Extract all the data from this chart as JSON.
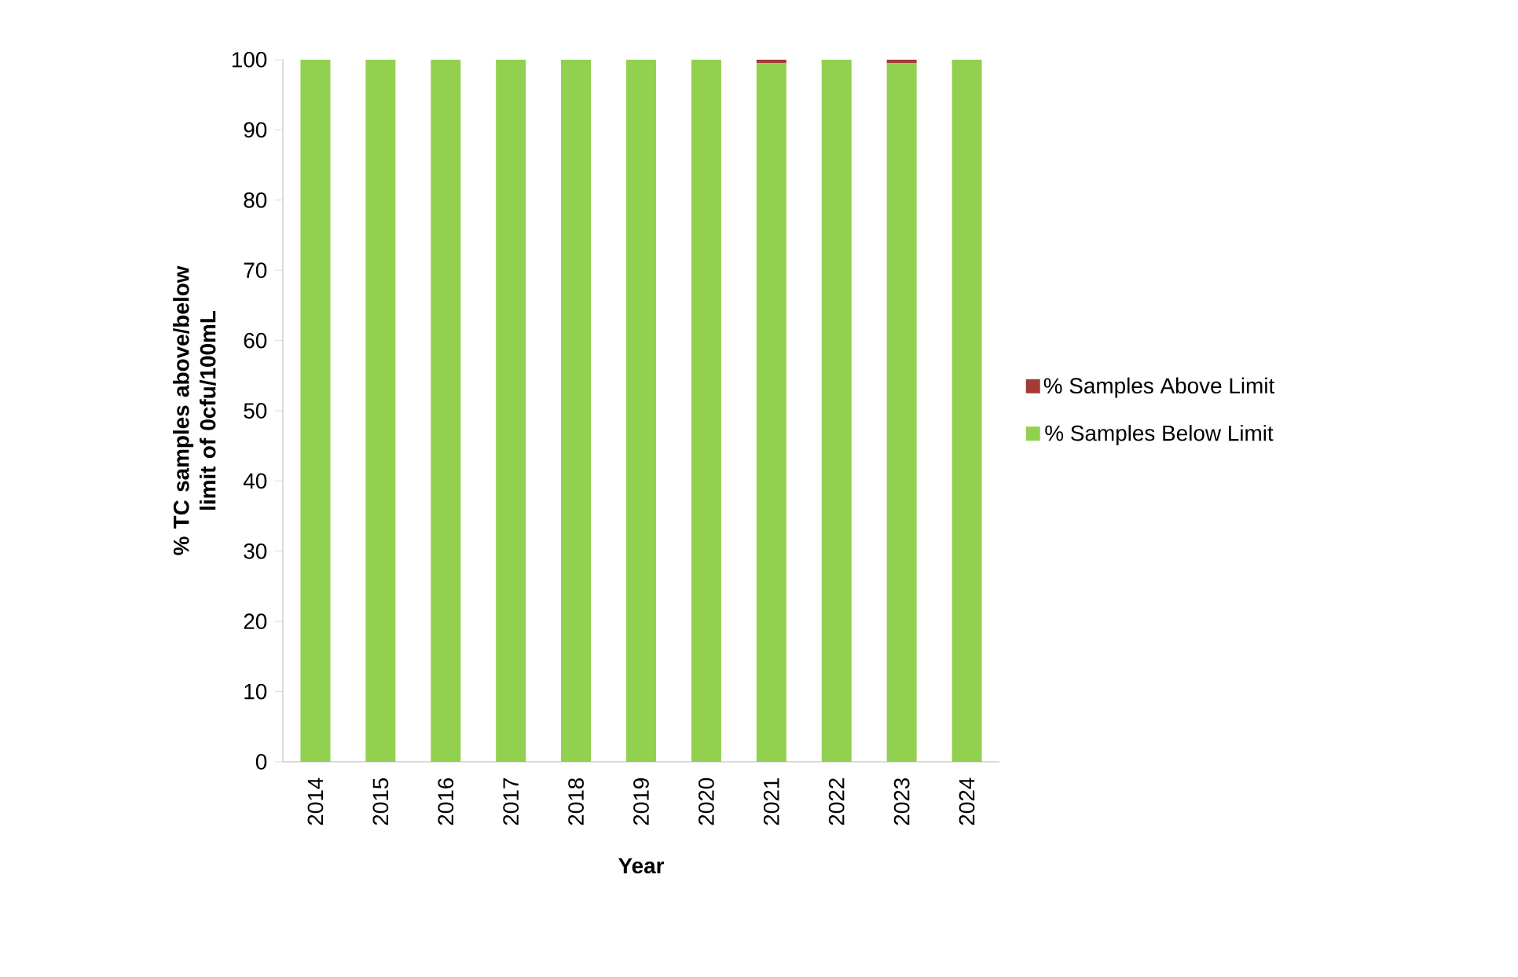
{
  "chart_data": {
    "type": "bar",
    "stacked": true,
    "xlabel": "Year",
    "ylabel": "% TC samples above/below limit of 0cfu/100mL",
    "categories": [
      "2014",
      "2015",
      "2016",
      "2017",
      "2018",
      "2019",
      "2020",
      "2021",
      "2022",
      "2023",
      "2024"
    ],
    "series": [
      {
        "name": "% Samples Below Limit",
        "color": "#92d050",
        "values": [
          100,
          100,
          100,
          100,
          100,
          100,
          100,
          99.5,
          100,
          99.5,
          100
        ]
      },
      {
        "name": "% Samples Above Limit",
        "color": "#a33a36",
        "values": [
          0,
          0,
          0,
          0,
          0,
          0,
          0,
          0.5,
          0,
          0.5,
          0
        ]
      }
    ],
    "ylim": [
      0,
      100
    ],
    "yticks": [
      0,
      10,
      20,
      30,
      40,
      50,
      60,
      70,
      80,
      90,
      100
    ],
    "legend": "right"
  }
}
